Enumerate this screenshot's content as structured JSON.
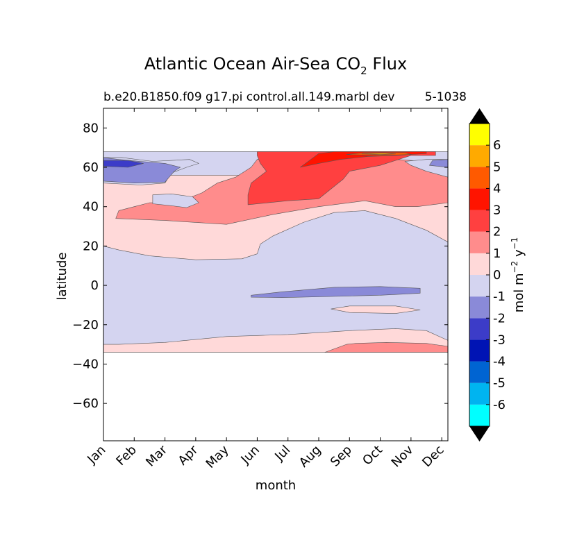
{
  "chart_data": {
    "type": "contour",
    "title": "Atlantic Ocean Air-Sea CO",
    "title_subscript": "2",
    "title_suffix": " Flux",
    "subtitle_left": "b.e20.B1850.f09 g17.pi control.all.149.marbl dev",
    "subtitle_right": "5-1038",
    "xlabel": "month",
    "ylabel": "latitude",
    "x_ticks": [
      "Jan",
      "Feb",
      "Mar",
      "Apr",
      "May",
      "Jun",
      "Jul",
      "Aug",
      "Sep",
      "Oct",
      "Nov",
      "Dec"
    ],
    "x_range": [
      1,
      12.2
    ],
    "y_ticks": [
      80,
      60,
      40,
      20,
      0,
      -20,
      -40,
      -60
    ],
    "y_tick_labels": [
      "80",
      "60",
      "40",
      "20",
      "0",
      "−20",
      "−40",
      "−60"
    ],
    "y_range": [
      -79,
      90
    ],
    "data_lat_range": [
      -34,
      68
    ],
    "levels": [
      -7,
      -6,
      -5,
      -4,
      -3,
      -2,
      -1,
      0,
      1,
      2,
      3,
      4,
      5,
      6,
      7
    ],
    "colorbar": {
      "tick_labels": [
        "-6",
        "-5",
        "-4",
        "-3",
        "-2",
        "-1",
        "0",
        "1",
        "2",
        "3",
        "4",
        "5",
        "6"
      ],
      "label_main": "mol m",
      "label_exp1": "−2",
      "label_mid": " y",
      "label_exp2": "−1",
      "colors": [
        "#00ffff",
        "#00b4f0",
        "#0064d2",
        "#0014b4",
        "#3c3cc8",
        "#8a8ad8",
        "#d4d4f0",
        "#ffd9d9",
        "#ff8c8c",
        "#ff4040",
        "#ff1400",
        "#ff5a00",
        "#ffaa00",
        "#ffff00"
      ],
      "extend": "both"
    },
    "regions": [
      {
        "name": "southern-positive-band",
        "value_range": [
          0,
          1
        ],
        "color": "#ffd9d9",
        "points": [
          [
            1,
            -34
          ],
          [
            12.2,
            -34
          ],
          [
            12.2,
            -28
          ],
          [
            11.5,
            -23
          ],
          [
            10.5,
            -22
          ],
          [
            9,
            -23
          ],
          [
            7,
            -25
          ],
          [
            5,
            -26
          ],
          [
            3,
            -29
          ],
          [
            1.5,
            -30
          ],
          [
            1,
            -30
          ]
        ]
      },
      {
        "name": "southern-flux-1-2",
        "value_range": [
          1,
          2
        ],
        "color": "#ff8c8c",
        "points": [
          [
            8.2,
            -34
          ],
          [
            12.2,
            -34
          ],
          [
            12.2,
            -31
          ],
          [
            11.5,
            -29.5
          ],
          [
            10.2,
            -29
          ],
          [
            9.2,
            -29.5
          ],
          [
            8.9,
            -30
          ]
        ]
      },
      {
        "name": "equatorial-negative-tongue",
        "value_range": [
          -2,
          -1
        ],
        "color": "#8a8ad8",
        "points": [
          [
            5.8,
            -5
          ],
          [
            6.8,
            -3.3
          ],
          [
            8.5,
            -1
          ],
          [
            10,
            -0.6
          ],
          [
            11.3,
            -1.5
          ],
          [
            11.3,
            -4
          ],
          [
            10,
            -5
          ],
          [
            8.5,
            -5.6
          ],
          [
            6.8,
            -6.2
          ],
          [
            5.8,
            -6
          ]
        ]
      },
      {
        "name": "subequatorial-positive-lens",
        "value_range": [
          0,
          1
        ],
        "color": "#ffd9d9",
        "points": [
          [
            8.4,
            -12
          ],
          [
            9,
            -10.5
          ],
          [
            10.5,
            -10.5
          ],
          [
            11.3,
            -12.5
          ],
          [
            10.5,
            -14.3
          ],
          [
            9,
            -13.8
          ]
        ]
      },
      {
        "name": "subtropical-positive-band",
        "value_range": [
          0,
          1
        ],
        "color": "#ffd9d9",
        "points": [
          [
            1,
            20
          ],
          [
            1.5,
            18
          ],
          [
            2.5,
            15
          ],
          [
            4,
            13
          ],
          [
            5.5,
            13.5
          ],
          [
            6,
            16
          ],
          [
            6.1,
            21
          ],
          [
            6.5,
            25
          ],
          [
            7.5,
            32
          ],
          [
            8.5,
            37
          ],
          [
            9.5,
            38
          ],
          [
            10.5,
            34
          ],
          [
            11.5,
            28
          ],
          [
            12.2,
            22
          ],
          [
            12.2,
            56
          ],
          [
            1,
            56
          ]
        ]
      },
      {
        "name": "northern-flux-1-2",
        "value_range": [
          1,
          2
        ],
        "color": "#ff8c8c",
        "points": [
          [
            1.4,
            34
          ],
          [
            3,
            33
          ],
          [
            5,
            31
          ],
          [
            6.5,
            36
          ],
          [
            8,
            40
          ],
          [
            9.5,
            43
          ],
          [
            10.5,
            40
          ],
          [
            11.2,
            40
          ],
          [
            12.2,
            42
          ],
          [
            12.2,
            62
          ],
          [
            11.5,
            63
          ],
          [
            10.5,
            64
          ],
          [
            9,
            66
          ],
          [
            8,
            66
          ],
          [
            7,
            66
          ],
          [
            6,
            64
          ],
          [
            5.8,
            60
          ],
          [
            5.3,
            55
          ],
          [
            4.7,
            52
          ],
          [
            4.2,
            47
          ],
          [
            3.7,
            44
          ],
          [
            3.3,
            42
          ],
          [
            2.5,
            42
          ],
          [
            2,
            40
          ],
          [
            1.5,
            38
          ]
        ]
      },
      {
        "name": "northern-flux-2-3",
        "value_range": [
          2,
          3
        ],
        "color": "#ff4040",
        "points": [
          [
            5.7,
            41
          ],
          [
            7,
            43
          ],
          [
            8,
            44
          ],
          [
            8.8,
            54
          ],
          [
            9,
            58
          ],
          [
            10,
            61
          ],
          [
            11,
            66
          ],
          [
            11.8,
            66
          ],
          [
            11.8,
            68
          ],
          [
            6,
            68
          ],
          [
            6,
            66
          ],
          [
            6.1,
            62
          ],
          [
            6.3,
            58
          ],
          [
            5.8,
            52
          ],
          [
            5.7,
            46
          ]
        ]
      },
      {
        "name": "northern-flux-3-4",
        "value_range": [
          3,
          4
        ],
        "color": "#ff1400",
        "points": [
          [
            7.4,
            60
          ],
          [
            8,
            62
          ],
          [
            8.7,
            64
          ],
          [
            9.6,
            65.5
          ],
          [
            10.5,
            66
          ],
          [
            11.5,
            67
          ],
          [
            11.5,
            68
          ],
          [
            8.5,
            68
          ],
          [
            8,
            67
          ]
        ]
      },
      {
        "name": "northern-flux-4-5",
        "value_range": [
          4,
          5
        ],
        "color": "#ff5a00",
        "points": [
          [
            8.9,
            66.5
          ],
          [
            10,
            66
          ],
          [
            11,
            66.5
          ],
          [
            10.8,
            67.5
          ],
          [
            9.5,
            67.5
          ]
        ]
      },
      {
        "name": "northern-flux-5-6",
        "value_range": [
          5,
          6
        ],
        "color": "#ffaa00",
        "points": [
          [
            9.4,
            66.8
          ],
          [
            10,
            66.5
          ],
          [
            10.5,
            66.8
          ],
          [
            10.1,
            67.2
          ]
        ]
      },
      {
        "name": "northern-negative-west",
        "value_range": [
          -1,
          0
        ],
        "color": "#d4d4f0",
        "points": [
          [
            1,
            65
          ],
          [
            1.6,
            65
          ],
          [
            2.6,
            63
          ],
          [
            3.8,
            64
          ],
          [
            4.1,
            62
          ],
          [
            3.7,
            60
          ],
          [
            3.2,
            57
          ],
          [
            3,
            52
          ],
          [
            2.2,
            51
          ],
          [
            1,
            52
          ]
        ]
      },
      {
        "name": "northern-negative-west-inner",
        "value_range": [
          -2,
          -1
        ],
        "color": "#8a8ad8",
        "points": [
          [
            1,
            65
          ],
          [
            1.5,
            64
          ],
          [
            2.2,
            63
          ],
          [
            3,
            62
          ],
          [
            3.5,
            60
          ],
          [
            3.3,
            58
          ],
          [
            3,
            52.5
          ],
          [
            2,
            52
          ],
          [
            1,
            53
          ]
        ]
      },
      {
        "name": "northern-negative-west-core",
        "value_range": [
          -3,
          -2
        ],
        "color": "#3c3cc8",
        "points": [
          [
            1,
            63.5
          ],
          [
            1.8,
            63.5
          ],
          [
            2.3,
            62
          ],
          [
            1.8,
            60
          ],
          [
            1,
            60.5
          ]
        ]
      },
      {
        "name": "midlatitude-negative-blob",
        "value_range": [
          -1,
          0
        ],
        "color": "#d4d4f0",
        "points": [
          [
            2.6,
            46
          ],
          [
            3.2,
            46.5
          ],
          [
            3.9,
            45
          ],
          [
            4.1,
            42
          ],
          [
            3.7,
            39.5
          ],
          [
            3.2,
            40.5
          ],
          [
            2.6,
            41.5
          ]
        ]
      },
      {
        "name": "northern-negative-east",
        "value_range": [
          -1,
          0
        ],
        "color": "#d4d4f0",
        "points": [
          [
            12.2,
            64
          ],
          [
            11.5,
            64
          ],
          [
            10.8,
            63
          ],
          [
            11,
            61
          ],
          [
            11.5,
            58
          ],
          [
            12.2,
            55
          ]
        ]
      },
      {
        "name": "northern-negative-east-inner",
        "value_range": [
          -2,
          -1
        ],
        "color": "#8a8ad8",
        "points": [
          [
            12.2,
            64
          ],
          [
            11.7,
            63.5
          ],
          [
            11.6,
            61
          ],
          [
            12.2,
            60
          ]
        ]
      }
    ]
  }
}
